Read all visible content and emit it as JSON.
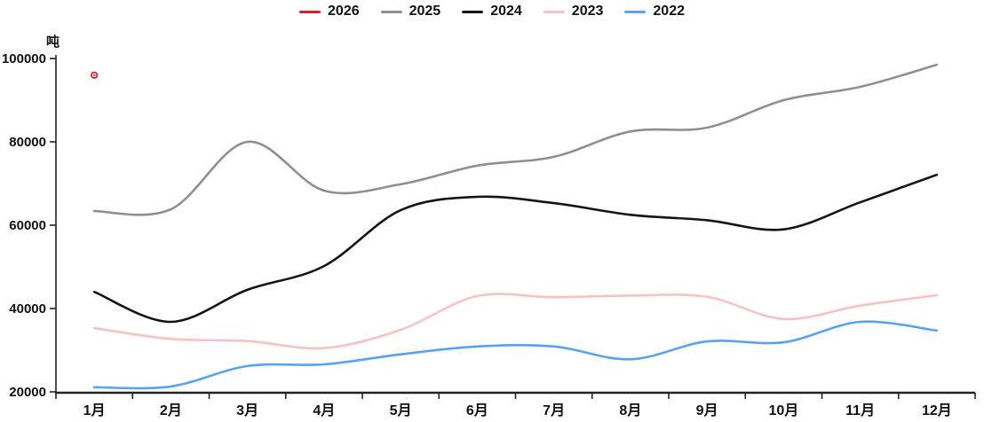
{
  "chart_data": {
    "type": "line",
    "title": "",
    "unit_label": "吨",
    "categories": [
      "1月",
      "2月",
      "3月",
      "4月",
      "5月",
      "6月",
      "7月",
      "8月",
      "9月",
      "10月",
      "11月",
      "12月"
    ],
    "series": [
      {
        "name": "2026",
        "color": "#dd2226",
        "style": "point",
        "values": [
          96000,
          null,
          null,
          null,
          null,
          null,
          null,
          null,
          null,
          null,
          null,
          null
        ]
      },
      {
        "name": "2025",
        "color": "#8f8f8f",
        "style": "line",
        "values": [
          63400,
          63800,
          80000,
          68300,
          69800,
          74300,
          76400,
          82500,
          83400,
          90000,
          93200,
          98500
        ]
      },
      {
        "name": "2024",
        "color": "#141414",
        "style": "line",
        "values": [
          44000,
          36800,
          44500,
          50200,
          63600,
          66800,
          65300,
          62500,
          61200,
          59000,
          65500,
          72100
        ]
      },
      {
        "name": "2023",
        "color": "#f7c2c6",
        "style": "line",
        "values": [
          35300,
          32700,
          32200,
          30500,
          34900,
          43000,
          42700,
          43100,
          42800,
          37500,
          40700,
          43200
        ]
      },
      {
        "name": "2022",
        "color": "#57a3f0",
        "style": "line",
        "values": [
          21100,
          21300,
          26200,
          26600,
          29000,
          30900,
          30900,
          27800,
          32100,
          31900,
          36800,
          34700
        ]
      }
    ],
    "ylim": [
      20000,
      100000
    ],
    "yticks": [
      20000,
      40000,
      60000,
      80000,
      100000
    ],
    "xlabel": "",
    "ylabel": "吨",
    "legend_position": "top",
    "grid": false,
    "axis_color": "#222222",
    "smooth": true
  }
}
